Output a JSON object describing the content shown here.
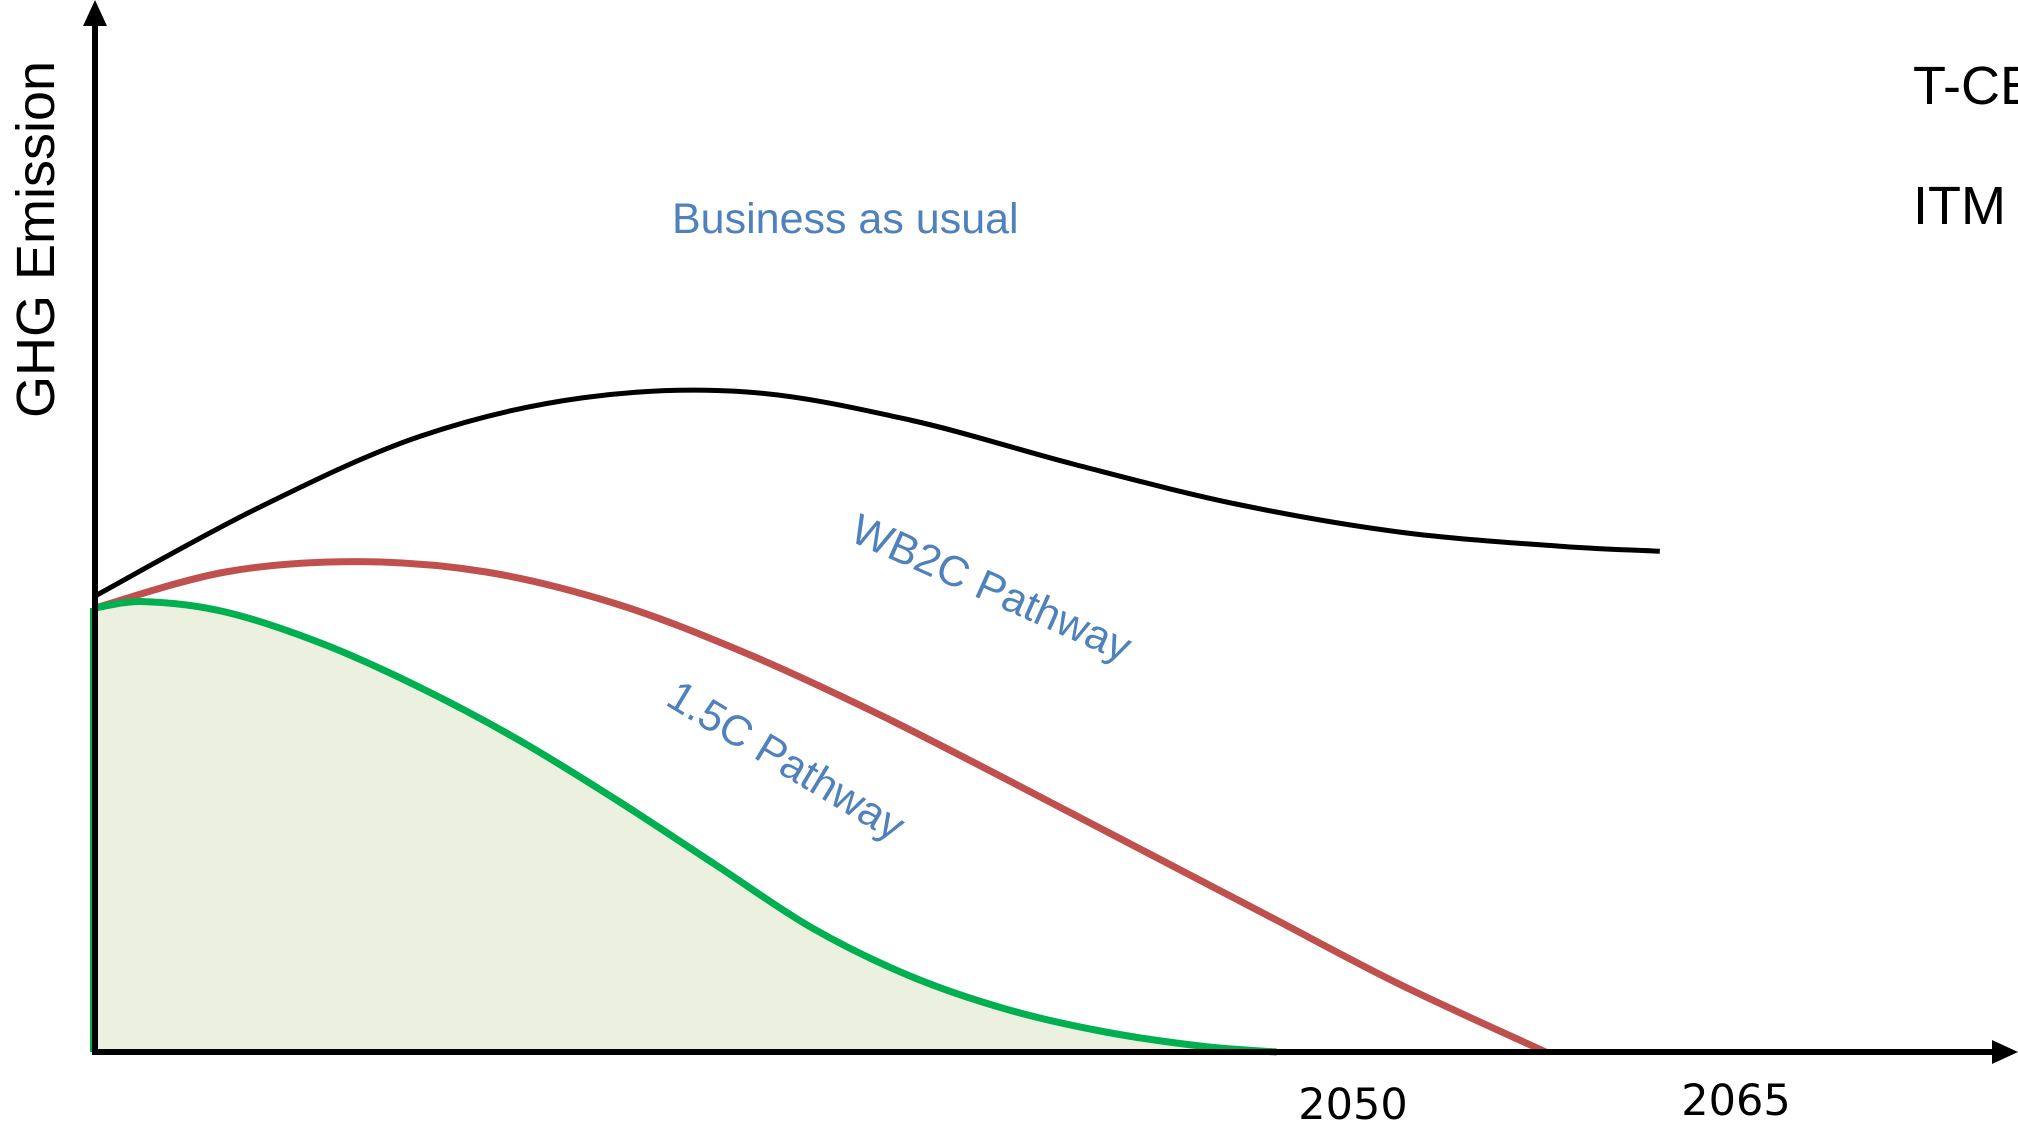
{
  "chart_data": {
    "type": "line",
    "title": "",
    "ylabel": "GHG Emission",
    "xlabel": "",
    "x_ticks": [
      "2050",
      "2065"
    ],
    "legend_partial": [
      "T-CE",
      "ITM"
    ],
    "grid": false,
    "filled_series": "1.5C Pathway",
    "colors": {
      "axis": "#000000",
      "label_text": "#4f81bd",
      "business_as_usual": "#000000",
      "wb2c": "#c0504d",
      "pathway_15c": "#00b050",
      "fill_15c": "#ebf1de"
    },
    "series": [
      {
        "name": "Business as usual",
        "points": [
          [
            0,
            57
          ],
          [
            10,
            68
          ],
          [
            20,
            77
          ],
          [
            30,
            81.8
          ],
          [
            40,
            82.5
          ],
          [
            50,
            79
          ],
          [
            60,
            73.5
          ],
          [
            70,
            68.5
          ],
          [
            80,
            65
          ],
          [
            90,
            63.2
          ],
          [
            96,
            62.6
          ]
        ]
      },
      {
        "name": "WB2C Pathway",
        "points": [
          [
            0,
            55.5
          ],
          [
            8,
            60
          ],
          [
            16,
            61.3
          ],
          [
            24,
            60
          ],
          [
            32,
            56
          ],
          [
            40,
            49.8
          ],
          [
            48,
            42.3
          ],
          [
            56,
            34
          ],
          [
            64,
            25.5
          ],
          [
            72,
            17
          ],
          [
            80,
            8.5
          ],
          [
            89,
            0
          ]
        ]
      },
      {
        "name": "1.5C Pathway",
        "points": [
          [
            0,
            55.5
          ],
          [
            3,
            56.3
          ],
          [
            8,
            55
          ],
          [
            14,
            51
          ],
          [
            20,
            45.5
          ],
          [
            26,
            39
          ],
          [
            32,
            31.5
          ],
          [
            38,
            23.5
          ],
          [
            44,
            15.5
          ],
          [
            50,
            9.5
          ],
          [
            56,
            5.3
          ],
          [
            62,
            2.5
          ],
          [
            68,
            0.7
          ],
          [
            72.5,
            0
          ]
        ]
      }
    ]
  }
}
